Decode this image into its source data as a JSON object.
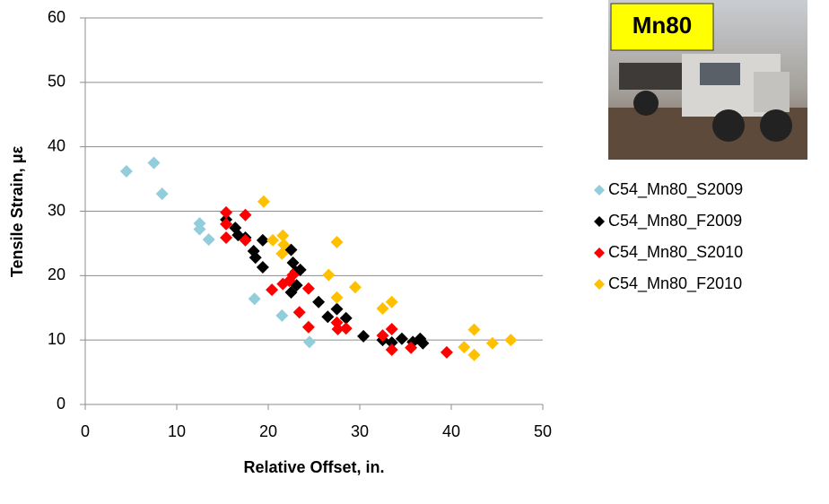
{
  "chart_data": {
    "type": "scatter",
    "inset_label": "Mn80",
    "xlabel": "Relative Offset, in.",
    "ylabel": "Tensile Strain, με",
    "xlim": [
      0,
      50
    ],
    "xticks": [
      0,
      10,
      20,
      30,
      40,
      50
    ],
    "ylim": [
      0,
      60
    ],
    "yticks": [
      0,
      10,
      20,
      30,
      40,
      50,
      60
    ],
    "grid": true,
    "legend": "right",
    "series": [
      {
        "name": "C54_Mn80_S2009",
        "color": "#92cddc",
        "x": [
          4.5,
          7.5,
          8.4,
          12.5,
          12.5,
          13.5,
          18.5,
          21.5,
          24.5
        ],
        "values": [
          36.2,
          37.5,
          32.7,
          28.1,
          27.2,
          25.6,
          16.4,
          13.8,
          9.7
        ]
      },
      {
        "name": "C54_Mn80_F2009",
        "color": "#000000",
        "x": [
          15.4,
          16.4,
          16.7,
          17.5,
          18.4,
          18.6,
          19.4,
          19.4,
          22.5,
          22.7,
          23.0,
          23.5,
          22.5,
          23.1,
          25.5,
          26.5,
          27.5,
          28.5,
          30.4,
          32.5,
          33.5,
          34.6,
          35.8,
          36.6,
          36.9
        ],
        "values": [
          28.7,
          27.4,
          26.3,
          25.9,
          23.8,
          22.8,
          25.5,
          21.3,
          24.0,
          22.0,
          20.6,
          20.9,
          17.4,
          18.5,
          15.9,
          13.6,
          14.8,
          13.4,
          10.6,
          10.0,
          9.6,
          10.2,
          9.7,
          10.2,
          9.5
        ]
      },
      {
        "name": "C54_Mn80_S2010",
        "color": "#ff0000",
        "x": [
          15.4,
          15.4,
          15.4,
          17.5,
          17.5,
          20.4,
          21.6,
          22.3,
          22.7,
          24.4,
          24.4,
          23.4,
          27.5,
          27.6,
          28.5,
          32.5,
          33.5,
          33.5,
          35.6,
          39.5
        ],
        "values": [
          29.8,
          28.0,
          25.9,
          29.4,
          25.5,
          17.8,
          18.7,
          19.2,
          20.1,
          18.0,
          12.0,
          14.3,
          12.7,
          11.7,
          11.8,
          10.7,
          11.7,
          8.5,
          8.8,
          8.1
        ]
      },
      {
        "name": "C54_Mn80_F2010",
        "color": "#ffc000",
        "x": [
          19.5,
          20.5,
          21.6,
          21.5,
          21.7,
          26.6,
          27.5,
          27.5,
          29.5,
          32.5,
          33.5,
          41.4,
          42.5,
          42.5,
          44.5,
          46.5
        ],
        "values": [
          31.5,
          25.5,
          26.2,
          23.4,
          24.8,
          20.1,
          25.2,
          16.6,
          18.2,
          14.9,
          15.9,
          8.9,
          11.6,
          7.7,
          9.5,
          10.0
        ]
      }
    ]
  }
}
